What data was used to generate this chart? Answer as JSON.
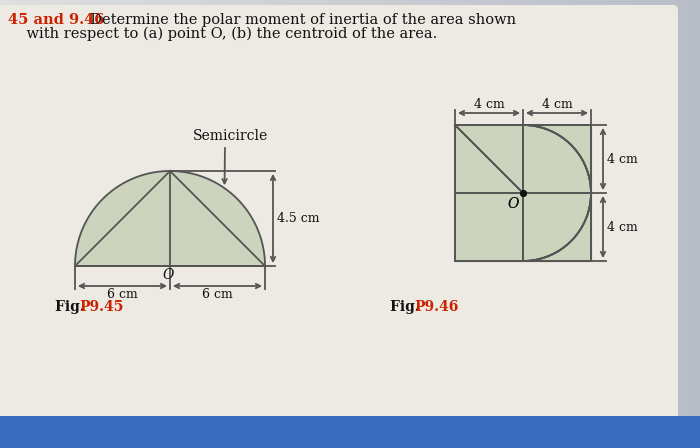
{
  "bg_left_color": "#e8e8e8",
  "bg_right_color": "#c8cdd8",
  "paper_white": "#f2f0ec",
  "paper_gray": "#d4d8df",
  "title_prefix": "45 and 9.46",
  "title_prefix_color": "#cc2200",
  "title_line1": "  Determine the polar moment of inertia of the area shown",
  "title_line2": "    with respect to (a) point O, (b) the centroid of the area.",
  "title_color": "#111111",
  "fig1_fig": "Fig. ",
  "fig1_num": "P9.45",
  "fig2_fig": "Fig. ",
  "fig2_num": "P9.46",
  "fig_label_color": "#cc2200",
  "fig_text_color": "#111111",
  "semicircle_label": "Semicircle",
  "dim_45_cm": "4.5 cm",
  "dim_6cm": "6 cm",
  "dim_4cm": "4 cm",
  "line_color": "#555555",
  "fill_color": "#cdd4be",
  "blue_strip": "#3a6bbf",
  "lw": 1.3
}
